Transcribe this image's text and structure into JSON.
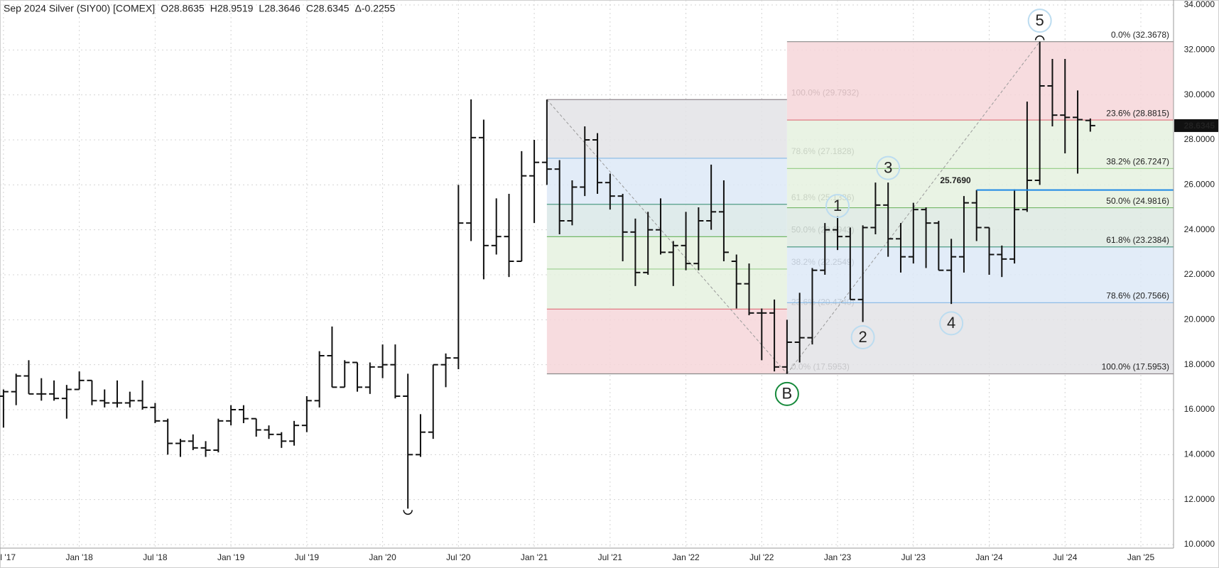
{
  "chart_data": {
    "type": "ohlc",
    "title": "Sep 2024 Silver (SIY00) [COMEX]",
    "quote": [
      {
        "value": 28.8635,
        "label": "O28.8635"
      },
      {
        "value": 28.9519,
        "label": "H28.9519"
      },
      {
        "value": 28.3646,
        "label": "L28.3646"
      },
      {
        "value": 28.6345,
        "label": "C28.6345"
      },
      {
        "value": -0.2255,
        "label": "Δ-0.2255"
      }
    ],
    "x": [
      "2017-07",
      "2017-08",
      "2017-09",
      "2017-10",
      "2017-11",
      "2017-12",
      "2018-01",
      "2018-02",
      "2018-03",
      "2018-04",
      "2018-05",
      "2018-06",
      "2018-07",
      "2018-08",
      "2018-09",
      "2018-10",
      "2018-11",
      "2018-12",
      "2019-01",
      "2019-02",
      "2019-03",
      "2019-04",
      "2019-05",
      "2019-06",
      "2019-07",
      "2019-08",
      "2019-09",
      "2019-10",
      "2019-11",
      "2019-12",
      "2020-01",
      "2020-02",
      "2020-03",
      "2020-04",
      "2020-05",
      "2020-06",
      "2020-07",
      "2020-08",
      "2020-09",
      "2020-10",
      "2020-11",
      "2020-12",
      "2021-01",
      "2021-02",
      "2021-03",
      "2021-04",
      "2021-05",
      "2021-06",
      "2021-07",
      "2021-08",
      "2021-09",
      "2021-10",
      "2021-11",
      "2021-12",
      "2022-01",
      "2022-02",
      "2022-03",
      "2022-04",
      "2022-05",
      "2022-06",
      "2022-07",
      "2022-08",
      "2022-09",
      "2022-10",
      "2022-11",
      "2022-12",
      "2023-01",
      "2023-02",
      "2023-03",
      "2023-04",
      "2023-05",
      "2023-06",
      "2023-07",
      "2023-08",
      "2023-09",
      "2023-10",
      "2023-11",
      "2023-12",
      "2024-01",
      "2024-02",
      "2024-03",
      "2024-04",
      "2024-05",
      "2024-06",
      "2024-07",
      "2024-08",
      "2024-09"
    ],
    "open": [
      16.6,
      16.8,
      17.5,
      16.7,
      16.7,
      16.5,
      16.9,
      17.3,
      16.4,
      16.3,
      16.3,
      16.4,
      16.1,
      15.5,
      14.5,
      14.6,
      14.3,
      14.2,
      15.5,
      16.0,
      15.6,
      15.1,
      14.9,
      14.6,
      15.3,
      16.4,
      18.4,
      17.0,
      18.1,
      17.0,
      17.9,
      18.0,
      16.6,
      14.0,
      15.0,
      18.0,
      18.3,
      24.3,
      28.1,
      23.3,
      23.7,
      22.6,
      26.4,
      27.0,
      26.7,
      24.4,
      25.9,
      28.0,
      26.1,
      25.5,
      23.9,
      22.1,
      24.0,
      23.0,
      23.3,
      22.5,
      24.4,
      24.8,
      22.6,
      21.6,
      20.3,
      20.3,
      17.9,
      19.0,
      19.2,
      22.2,
      24.0,
      23.7,
      20.9,
      24.1,
      25.1,
      23.6,
      22.8,
      24.9,
      24.3,
      22.2,
      22.8,
      25.2,
      24.1,
      22.9,
      22.7,
      24.9,
      26.2,
      30.4,
      29.1,
      29.0,
      28.8635
    ],
    "high": [
      16.9,
      17.6,
      18.2,
      17.4,
      17.3,
      17.1,
      17.7,
      17.3,
      16.9,
      17.3,
      16.8,
      17.3,
      16.3,
      15.6,
      14.7,
      14.9,
      14.6,
      15.6,
      16.2,
      16.2,
      15.6,
      15.3,
      15.0,
      15.5,
      16.6,
      18.6,
      19.7,
      18.2,
      18.1,
      18.1,
      18.9,
      18.9,
      17.6,
      15.8,
      18.0,
      18.5,
      26.0,
      29.8,
      28.9,
      25.4,
      25.6,
      27.5,
      28.0,
      29.7932,
      27.1,
      26.2,
      28.6,
      28.3,
      26.5,
      25.6,
      24.5,
      24.8,
      25.4,
      23.5,
      24.8,
      25.0,
      26.9,
      26.2,
      22.9,
      22.5,
      20.5,
      20.9,
      20.0,
      21.2,
      22.3,
      24.3,
      24.6,
      24.1,
      24.2,
      26.1,
      26.1,
      24.3,
      25.2,
      25.0,
      24.4,
      23.6,
      25.5,
      25.769,
      24.1,
      23.3,
      25.8,
      29.7,
      32.3678,
      31.6,
      31.6,
      30.2,
      28.9519
    ],
    "low": [
      15.2,
      16.2,
      16.7,
      16.4,
      16.4,
      15.6,
      16.9,
      16.2,
      16.1,
      16.1,
      16.1,
      16.0,
      15.4,
      14.0,
      13.9,
      14.2,
      13.9,
      14.1,
      15.3,
      15.4,
      14.8,
      14.7,
      14.3,
      14.4,
      15.0,
      16.1,
      17.0,
      17.0,
      16.8,
      16.7,
      17.4,
      16.5,
      11.6,
      13.9,
      14.7,
      17.0,
      17.8,
      23.5,
      21.8,
      22.9,
      21.9,
      22.6,
      24.3,
      26.0,
      23.8,
      24.2,
      25.5,
      25.6,
      24.9,
      22.6,
      21.5,
      22.0,
      22.9,
      21.5,
      22.2,
      22.2,
      24.0,
      22.6,
      20.5,
      20.2,
      18.2,
      17.7,
      17.5953,
      18.1,
      18.9,
      22.0,
      23.1,
      20.9,
      19.9,
      23.8,
      22.8,
      22.1,
      22.5,
      22.3,
      22.2,
      20.7,
      22.1,
      23.5,
      22.0,
      21.9,
      22.5,
      24.8,
      26.0,
      28.6,
      27.4,
      26.5,
      28.3646
    ],
    "close": [
      16.8,
      17.5,
      16.7,
      16.7,
      16.5,
      16.9,
      17.3,
      16.4,
      16.3,
      16.3,
      16.4,
      16.1,
      15.5,
      14.5,
      14.6,
      14.3,
      14.2,
      15.5,
      16.0,
      15.6,
      15.1,
      14.9,
      14.6,
      15.3,
      16.4,
      18.4,
      17.0,
      18.1,
      17.0,
      17.9,
      18.0,
      16.6,
      14.0,
      15.0,
      18.0,
      18.3,
      24.3,
      28.1,
      23.3,
      23.7,
      22.6,
      26.4,
      27.0,
      26.7,
      24.4,
      25.9,
      28.0,
      26.1,
      25.5,
      23.9,
      22.1,
      24.0,
      23.0,
      23.3,
      22.5,
      24.4,
      24.8,
      23.0,
      21.6,
      20.3,
      20.3,
      17.9,
      19.0,
      19.2,
      22.2,
      24.0,
      23.7,
      20.9,
      24.1,
      25.1,
      23.6,
      22.8,
      24.9,
      24.3,
      22.2,
      22.8,
      25.2,
      24.1,
      22.9,
      22.7,
      24.9,
      26.2,
      30.4,
      29.1,
      29.0,
      28.9,
      28.6345
    ],
    "color": "#111111",
    "ylim": [
      10,
      34
    ],
    "yticks": [
      {
        "value": 10,
        "label": "10.0000"
      },
      {
        "value": 12,
        "label": "12.0000"
      },
      {
        "value": 14,
        "label": "14.0000"
      },
      {
        "value": 16,
        "label": "16.0000"
      },
      {
        "value": 18,
        "label": "18.0000"
      },
      {
        "value": 20,
        "label": "20.0000"
      },
      {
        "value": 22,
        "label": "22.0000"
      },
      {
        "value": 24,
        "label": "24.0000"
      },
      {
        "value": 26,
        "label": "26.0000"
      },
      {
        "value": 28,
        "label": "28.0000"
      },
      {
        "value": 30,
        "label": "30.0000"
      },
      {
        "value": 32,
        "label": "32.0000"
      },
      {
        "value": 34,
        "label": "34.0000"
      }
    ],
    "xticks": [
      {
        "value": "2017-07",
        "label": "Jul '17"
      },
      {
        "value": "2018-01",
        "label": "Jan '18"
      },
      {
        "value": "2018-07",
        "label": "Jul '18"
      },
      {
        "value": "2019-01",
        "label": "Jan '19"
      },
      {
        "value": "2019-07",
        "label": "Jul '19"
      },
      {
        "value": "2020-01",
        "label": "Jan '20"
      },
      {
        "value": "2020-07",
        "label": "Jul '20"
      },
      {
        "value": "2021-01",
        "label": "Jan '21"
      },
      {
        "value": "2021-07",
        "label": "Jul '21"
      },
      {
        "value": "2022-01",
        "label": "Jan '22"
      },
      {
        "value": "2022-07",
        "label": "Jul '22"
      },
      {
        "value": "2023-01",
        "label": "Jan '23"
      },
      {
        "value": "2023-07",
        "label": "Jul '23"
      },
      {
        "value": "2024-01",
        "label": "Jan '24"
      },
      {
        "value": "2024-07",
        "label": "Jul '24"
      },
      {
        "value": "2025-01",
        "label": "Jan '25"
      }
    ],
    "grid": true,
    "fibs": [
      {
        "x_start": "2021-02",
        "x_end": "2022-09",
        "levels": [
          {
            "value": 29.7932,
            "label": "100.0% (29.7932)",
            "color": "#8f868c"
          },
          {
            "value": 27.1828,
            "label": "78.6% (27.1828)",
            "color": "#8fbde6"
          },
          {
            "value": 25.1336,
            "label": "61.8% (25.1336)",
            "color": "#4f9c86"
          },
          {
            "value": 23.6943,
            "label": "50.0% (23.6943)",
            "color": "#74b868"
          },
          {
            "value": 22.2549,
            "label": "38.2% (22.2549)",
            "color": "#9ccf8e"
          },
          {
            "value": 20.474,
            "label": "23.6% (20.4740)",
            "color": "#de6f79"
          },
          {
            "value": 17.5953,
            "label": "0.0% (17.5953)",
            "color": "#8a8a8a"
          }
        ],
        "fills": [
          "#e3e3e6",
          "#dde9f7",
          "#d9e8e8",
          "#e5f1df",
          "#e5f1df",
          "#f6d6d9"
        ]
      },
      {
        "x_start": "2022-09",
        "levels": [
          {
            "value": 32.3678,
            "label": "0.0% (32.3678)",
            "color": "#8a8a8a"
          },
          {
            "value": 28.8815,
            "label": "23.6% (28.8815)",
            "color": "#de6f79"
          },
          {
            "value": 26.7247,
            "label": "38.2% (26.7247)",
            "color": "#9ccf8e"
          },
          {
            "value": 24.9816,
            "label": "50.0% (24.9816)",
            "color": "#74b868"
          },
          {
            "value": 23.2384,
            "label": "61.8% (23.2384)",
            "color": "#4f9c86"
          },
          {
            "value": 20.7566,
            "label": "78.6% (20.7566)",
            "color": "#8fbde6"
          },
          {
            "value": 17.5953,
            "label": "100.0% (17.5953)",
            "color": "#8f868c"
          }
        ],
        "fills": [
          "#f6d6d9",
          "#e5f1df",
          "#e5f1df",
          "#dde9e2",
          "#dde9f7",
          "#e3e3e6"
        ]
      }
    ],
    "resistance": {
      "value": 25.769,
      "label": "25.7690",
      "x_start": "2023-12",
      "color": "#1e88e5"
    },
    "waves": [
      {
        "label": "B",
        "x": "2022-09",
        "y": 16.7,
        "color": "#178a3c"
      },
      {
        "label": "1",
        "x": "2023-01",
        "y": 25.06,
        "color": "#bcdcf0"
      },
      {
        "label": "2",
        "x": "2023-03",
        "y": 19.22,
        "color": "#bcdcf0"
      },
      {
        "label": "3",
        "x": "2023-05",
        "y": 26.75,
        "color": "#bcdcf0"
      },
      {
        "label": "4",
        "x": "2023-10",
        "y": 19.84,
        "color": "#bcdcf0"
      },
      {
        "label": "5",
        "x": "2024-05",
        "y": 33.3,
        "color": "#bcdcf0"
      }
    ]
  }
}
